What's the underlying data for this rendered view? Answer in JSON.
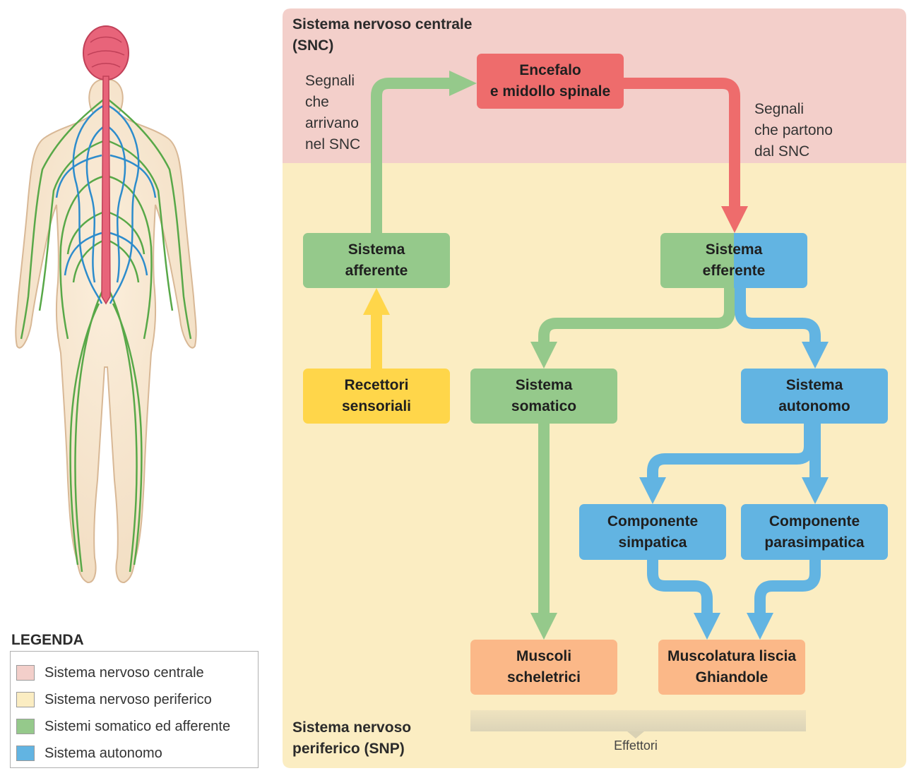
{
  "regions": {
    "cns": {
      "title": "Sistema nervoso centrale\n(SNC)",
      "color": "#f3cfca"
    },
    "pns": {
      "title": "Sistema nervoso\nperiferico (SNP)",
      "color": "#fbedc2"
    }
  },
  "signals": {
    "incoming": "Segnali\nche\narrivano\nnel SNC",
    "outgoing": "Segnali\nche partono\ndal SNC"
  },
  "nodes": {
    "brain": "Encefalo\ne midollo spinale",
    "afferent": "Sistema\nafferente",
    "efferent": "Sistema\nefferente",
    "receptors": "Recettori\nsensoriali",
    "somatic": "Sistema\nsomatico",
    "autonomic": "Sistema\nautonomo",
    "sympathetic": "Componente\nsimpatica",
    "parasympathetic": "Componente\nparasimpatica",
    "skeletal": "Muscoli\nscheletrici",
    "smooth": "Muscolatura liscia\nGhiandole"
  },
  "effectors_label": "Effettori",
  "legend": {
    "title": "LEGENDA",
    "items": [
      {
        "label": "Sistema nervoso centrale",
        "color": "#f3cfca"
      },
      {
        "label": "Sistema nervoso periferico",
        "color": "#fbedc2"
      },
      {
        "label": "Sistemi somatico ed afferente",
        "color": "#95c98b"
      },
      {
        "label": "Sistema autonomo",
        "color": "#62b4e2"
      }
    ]
  },
  "colors": {
    "green": "#95c98b",
    "blue": "#62b4e2",
    "red": "#ee6c6c",
    "yellow": "#ffd64a",
    "orange": "#fbb888"
  }
}
